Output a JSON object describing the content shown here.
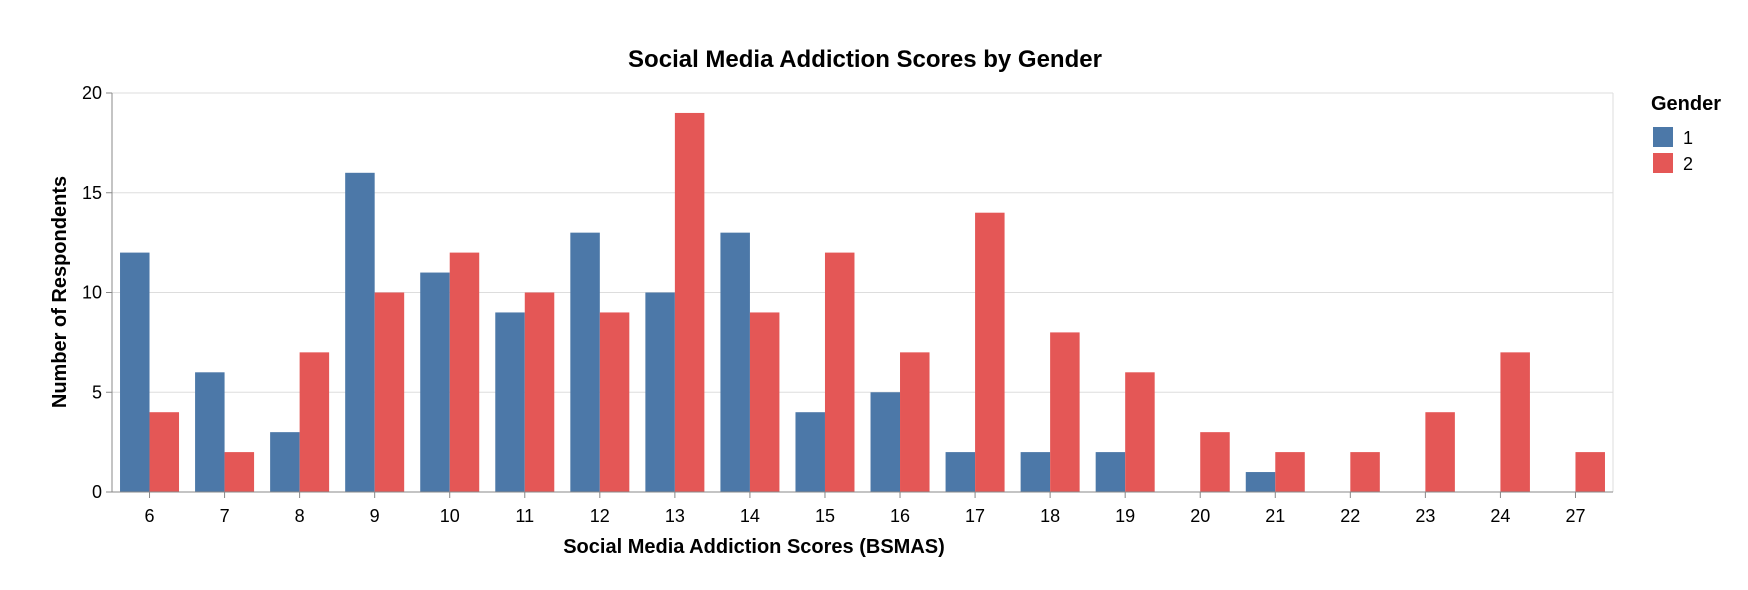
{
  "chart_data": {
    "type": "bar",
    "title": "Social Media Addiction Scores by Gender",
    "xlabel": "Social Media Addiction Scores (BSMAS)",
    "ylabel": "Number of Respondents",
    "ylim": [
      0,
      20
    ],
    "yticks": [
      "0",
      "5",
      "10",
      "15",
      "20"
    ],
    "grid": true,
    "categories": [
      "6",
      "7",
      "8",
      "9",
      "10",
      "11",
      "12",
      "13",
      "14",
      "15",
      "16",
      "17",
      "18",
      "19",
      "20",
      "21",
      "22",
      "23",
      "24",
      "27"
    ],
    "legend": {
      "title": "Gender",
      "position": "top-right"
    },
    "series": [
      {
        "name": "1",
        "color": "#4c78a8",
        "values": [
          12,
          6,
          3,
          16,
          11,
          9,
          13,
          10,
          13,
          4,
          5,
          2,
          2,
          2,
          0,
          1,
          0,
          0,
          0,
          0
        ]
      },
      {
        "name": "2",
        "color": "#e45756",
        "values": [
          4,
          2,
          7,
          10,
          12,
          10,
          9,
          19,
          9,
          12,
          7,
          14,
          8,
          6,
          3,
          2,
          2,
          4,
          7,
          2
        ]
      }
    ]
  }
}
